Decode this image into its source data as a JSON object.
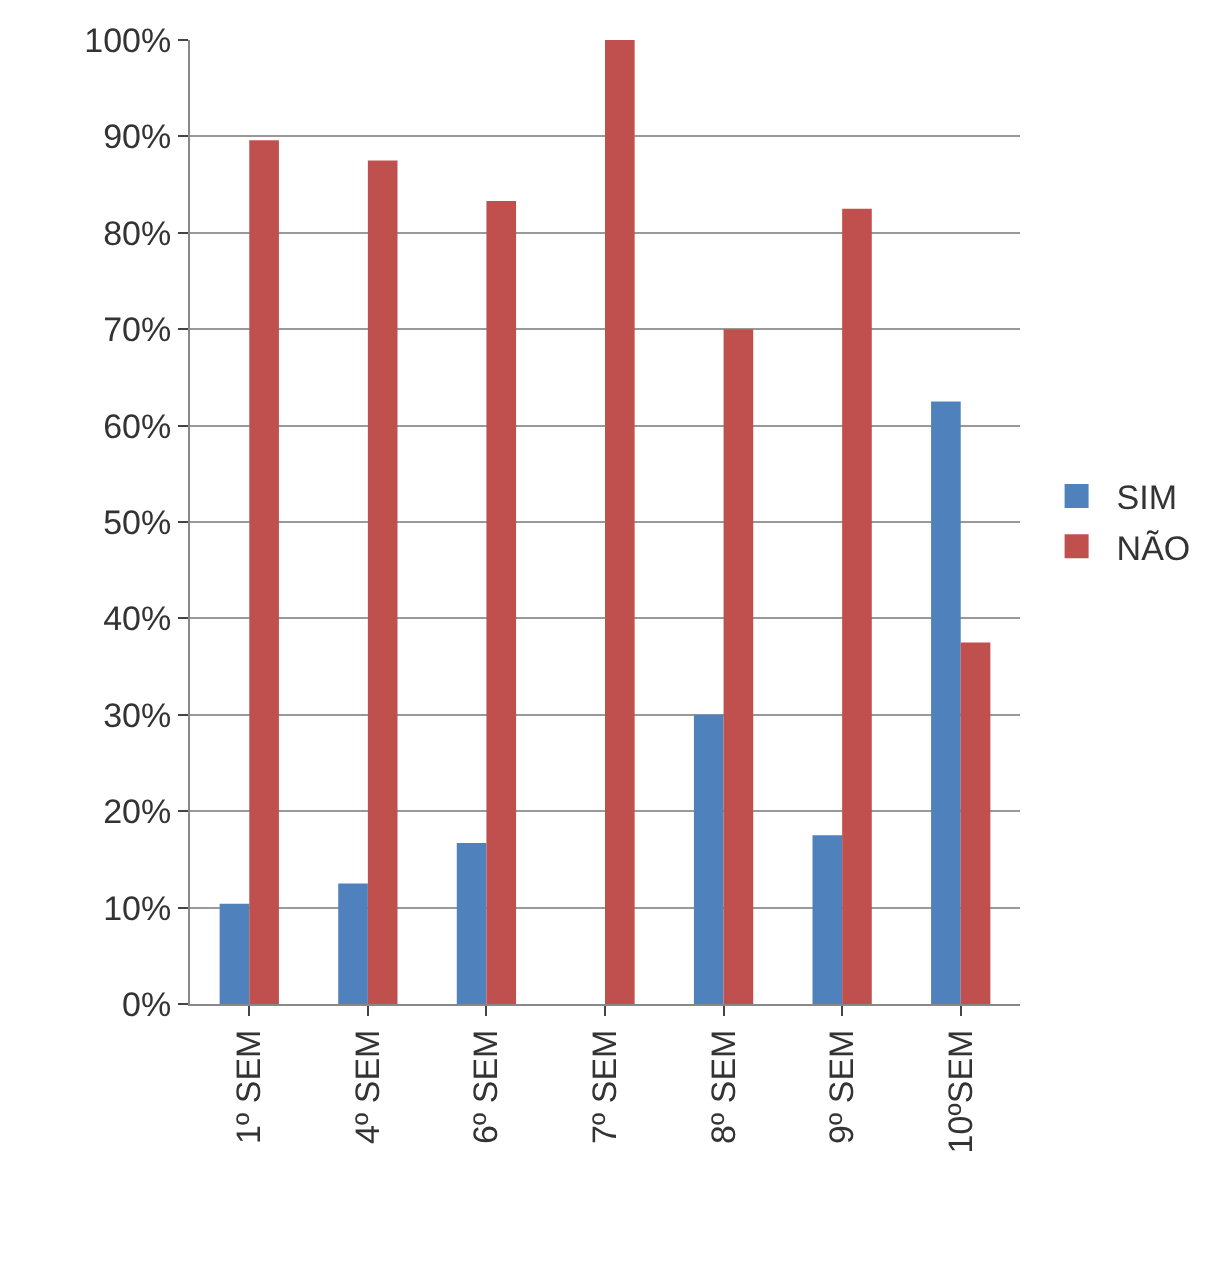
{
  "chart_data": {
    "type": "bar",
    "categories": [
      "1º SEM",
      "4º SEM",
      "6º SEM",
      "7º SEM",
      "8º SEM",
      "9º SEM",
      "10ºSEM"
    ],
    "series": [
      {
        "name": "SIM",
        "color": "#4f81bd",
        "values": [
          10.4,
          12.5,
          16.7,
          0,
          30,
          17.5,
          62.5
        ]
      },
      {
        "name": "NÃO",
        "color": "#c0504d",
        "values": [
          89.6,
          87.5,
          83.3,
          100,
          70,
          82.5,
          37.5
        ]
      }
    ],
    "ylim": [
      0,
      100
    ],
    "yticks": [
      {
        "value": 0,
        "label": "0%"
      },
      {
        "value": 10,
        "label": "10%"
      },
      {
        "value": 20,
        "label": "20%"
      },
      {
        "value": 30,
        "label": "30%"
      },
      {
        "value": 40,
        "label": "40%"
      },
      {
        "value": 50,
        "label": "50%"
      },
      {
        "value": 60,
        "label": "60%"
      },
      {
        "value": 70,
        "label": "70%"
      },
      {
        "value": 80,
        "label": "80%"
      },
      {
        "value": 90,
        "label": "90%"
      },
      {
        "value": 100,
        "label": "100%"
      }
    ],
    "grid": "y",
    "legend": "right"
  }
}
